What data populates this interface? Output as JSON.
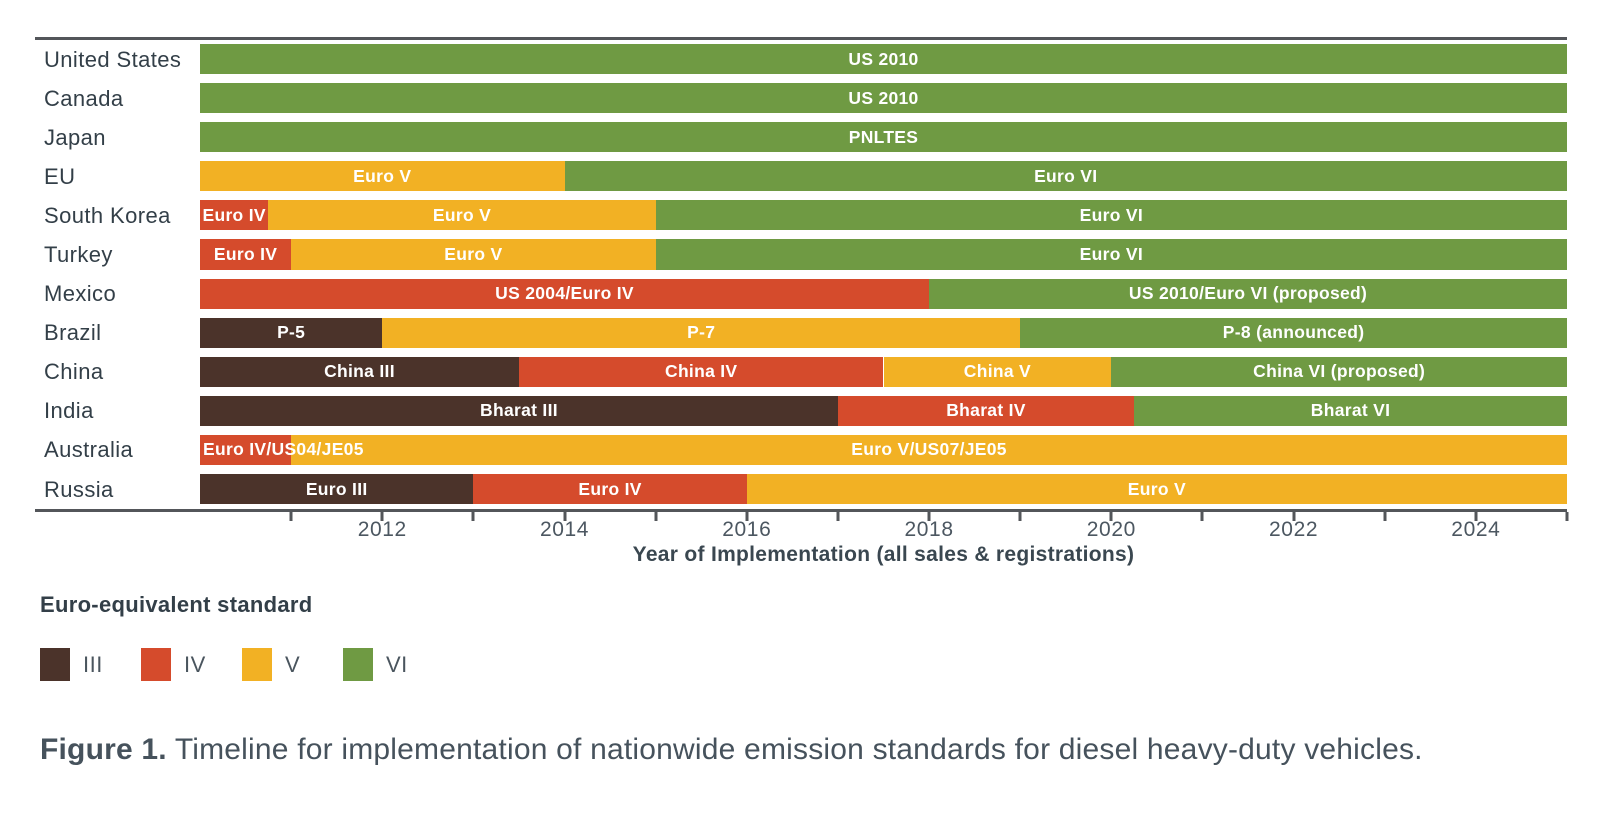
{
  "chart_data": {
    "type": "bar",
    "subtype": "horizontal-timeline-gantt",
    "title": "",
    "xlabel": "Year of Implementation (all sales & registrations)",
    "x_range": [
      2010,
      2025
    ],
    "grid": false,
    "legend_position": "bottom-left",
    "ticks": {
      "minor_years": [
        2011,
        2012,
        2013,
        2014,
        2015,
        2016,
        2017,
        2018,
        2019,
        2020,
        2021,
        2022,
        2023,
        2024,
        2025
      ],
      "labeled": [
        {
          "year": 2012,
          "label": "2012"
        },
        {
          "year": 2014,
          "label": "2014"
        },
        {
          "year": 2016,
          "label": "2016"
        },
        {
          "year": 2018,
          "label": "2018"
        },
        {
          "year": 2020,
          "label": "2020"
        },
        {
          "year": 2022,
          "label": "2022"
        },
        {
          "year": 2024,
          "label": "2024"
        }
      ]
    },
    "legend": {
      "title": "Euro-equivalent standard",
      "entries": [
        {
          "label": "III",
          "level": "III"
        },
        {
          "label": "IV",
          "level": "IV"
        },
        {
          "label": "V",
          "level": "V"
        },
        {
          "label": "VI",
          "level": "VI"
        }
      ]
    },
    "rows": [
      {
        "country": "United States",
        "segments": [
          {
            "label": "US 2010",
            "level": "VI",
            "start": 2010,
            "end": 2025
          }
        ]
      },
      {
        "country": "Canada",
        "segments": [
          {
            "label": "US 2010",
            "level": "VI",
            "start": 2010,
            "end": 2025
          }
        ]
      },
      {
        "country": "Japan",
        "segments": [
          {
            "label": "PNLTES",
            "level": "VI",
            "start": 2010,
            "end": 2025
          }
        ]
      },
      {
        "country": "EU",
        "segments": [
          {
            "label": "Euro V",
            "level": "V",
            "start": 2010,
            "end": 2014
          },
          {
            "label": "Euro VI",
            "level": "VI",
            "start": 2014,
            "end": 2025
          }
        ]
      },
      {
        "country": "South Korea",
        "segments": [
          {
            "label": "Euro IV",
            "level": "IV",
            "start": 2010,
            "end": 2010.75
          },
          {
            "label": "Euro V",
            "level": "V",
            "start": 2010.75,
            "end": 2015
          },
          {
            "label": "Euro VI",
            "level": "VI",
            "start": 2015,
            "end": 2025
          }
        ]
      },
      {
        "country": "Turkey",
        "segments": [
          {
            "label": "Euro IV",
            "level": "IV",
            "start": 2010,
            "end": 2011
          },
          {
            "label": "Euro V",
            "level": "V",
            "start": 2011,
            "end": 2015
          },
          {
            "label": "Euro VI",
            "level": "VI",
            "start": 2015,
            "end": 2025
          }
        ]
      },
      {
        "country": "Mexico",
        "segments": [
          {
            "label": "US 2004/Euro IV",
            "level": "IV",
            "start": 2010,
            "end": 2018
          },
          {
            "label": "US 2010/Euro VI (proposed)",
            "level": "VI",
            "start": 2018,
            "end": 2025
          }
        ]
      },
      {
        "country": "Brazil",
        "segments": [
          {
            "label": "P-5",
            "level": "III",
            "start": 2010,
            "end": 2012
          },
          {
            "label": "P-7",
            "level": "V",
            "start": 2012,
            "end": 2019
          },
          {
            "label": "P-8 (announced)",
            "level": "VI",
            "start": 2019,
            "end": 2025
          }
        ]
      },
      {
        "country": "China",
        "segments": [
          {
            "label": "China III",
            "level": "III",
            "start": 2010,
            "end": 2013.5
          },
          {
            "label": "China IV",
            "level": "IV",
            "start": 2013.5,
            "end": 2017.5
          },
          {
            "label": "China V",
            "level": "V",
            "start": 2017.5,
            "end": 2020
          },
          {
            "label": "China VI (proposed)",
            "level": "VI",
            "start": 2020,
            "end": 2025
          }
        ]
      },
      {
        "country": "India",
        "segments": [
          {
            "label": "Bharat III",
            "level": "III",
            "start": 2010,
            "end": 2017
          },
          {
            "label": "Bharat IV",
            "level": "IV",
            "start": 2017,
            "end": 2020.25
          },
          {
            "label": "Bharat VI",
            "level": "VI",
            "start": 2020.25,
            "end": 2025
          }
        ]
      },
      {
        "country": "Australia",
        "segments": [
          {
            "label": "Euro IV/US04/JE05",
            "level": "IV",
            "start": 2010,
            "end": 2011
          },
          {
            "label": "Euro V/US07/JE05",
            "level": "V",
            "start": 2011,
            "end": 2025
          }
        ]
      },
      {
        "country": "Russia",
        "segments": [
          {
            "label": "Euro III",
            "level": "III",
            "start": 2010,
            "end": 2013
          },
          {
            "label": "Euro IV",
            "level": "IV",
            "start": 2013,
            "end": 2016
          },
          {
            "label": "Euro V",
            "level": "V",
            "start": 2016,
            "end": 2025
          }
        ]
      }
    ]
  },
  "colors": {
    "III": "#4b332a",
    "IV": "#d54b2c",
    "V": "#f2b124",
    "VI": "#6f9a43",
    "axis": "#53565a",
    "row_label_text": "#333f48",
    "tick_label_text": "#4c5761",
    "bar_label_text": "#ffffff"
  },
  "caption": {
    "prefix": "Figure 1.",
    "text": "Timeline for implementation of nationwide emission standards for diesel heavy-duty vehicles."
  }
}
